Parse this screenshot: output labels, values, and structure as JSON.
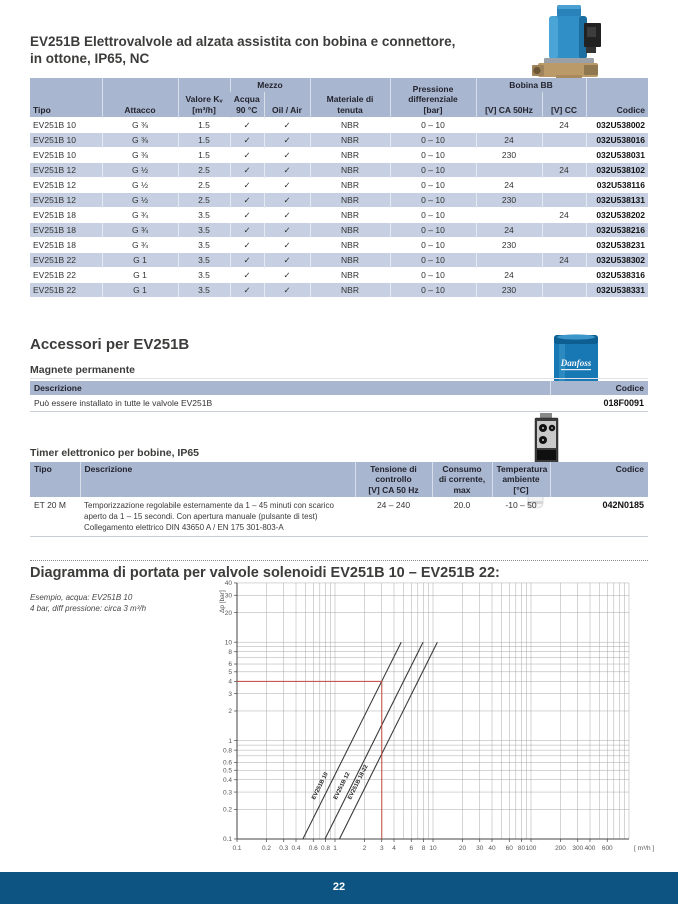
{
  "header": {
    "title": "EV251B Elettrovalvole ad alzata assistita con bobina e connettore,\nin ottone, IP65, NC"
  },
  "main_table": {
    "group_headers": {
      "mezzo": "Mezzo",
      "bobina": "Bobina BB"
    },
    "columns": [
      "Tipo",
      "Attacco",
      "Valore Kᵥ\n[m³/h]",
      "Acqua\n90 °C",
      "Oil / Air",
      "Materiale di\ntenuta",
      "Pressione\ndifferenziale\n[bar]",
      "[V] CA 50Hz",
      "[V] CC",
      "Codice"
    ],
    "rows": [
      [
        "EV251B 10",
        "G ⅜",
        "1.5",
        "✓",
        "✓",
        "NBR",
        "0 – 10",
        "",
        "24",
        "032U538002"
      ],
      [
        "EV251B 10",
        "G ⅜",
        "1.5",
        "✓",
        "✓",
        "NBR",
        "0 – 10",
        "24",
        "",
        "032U538016"
      ],
      [
        "EV251B 10",
        "G ⅜",
        "1.5",
        "✓",
        "✓",
        "NBR",
        "0 – 10",
        "230",
        "",
        "032U538031"
      ],
      [
        "EV251B 12",
        "G ½",
        "2.5",
        "✓",
        "✓",
        "NBR",
        "0 – 10",
        "",
        "24",
        "032U538102"
      ],
      [
        "EV251B 12",
        "G ½",
        "2.5",
        "✓",
        "✓",
        "NBR",
        "0 – 10",
        "24",
        "",
        "032U538116"
      ],
      [
        "EV251B 12",
        "G ½",
        "2.5",
        "✓",
        "✓",
        "NBR",
        "0 – 10",
        "230",
        "",
        "032U538131"
      ],
      [
        "EV251B 18",
        "G ¾",
        "3.5",
        "✓",
        "✓",
        "NBR",
        "0 – 10",
        "",
        "24",
        "032U538202"
      ],
      [
        "EV251B 18",
        "G ¾",
        "3.5",
        "✓",
        "✓",
        "NBR",
        "0 – 10",
        "24",
        "",
        "032U538216"
      ],
      [
        "EV251B 18",
        "G ¾",
        "3.5",
        "✓",
        "✓",
        "NBR",
        "0 – 10",
        "230",
        "",
        "032U538231"
      ],
      [
        "EV251B 22",
        "G 1",
        "3.5",
        "✓",
        "✓",
        "NBR",
        "0 – 10",
        "",
        "24",
        "032U538302"
      ],
      [
        "EV251B 22",
        "G 1",
        "3.5",
        "✓",
        "✓",
        "NBR",
        "0 – 10",
        "24",
        "",
        "032U538316"
      ],
      [
        "EV251B 22",
        "G 1",
        "3.5",
        "✓",
        "✓",
        "NBR",
        "0 – 10",
        "230",
        "",
        "032U538331"
      ]
    ]
  },
  "accessories": {
    "title": "Accessori per EV251B",
    "magnet": {
      "subtitle": "Magnete permanente",
      "columns": [
        "Descrizione",
        "Codice"
      ],
      "row": {
        "descrizione": "Può essere installato in tutte le valvole EV251B",
        "codice": "018F0091"
      }
    },
    "timer": {
      "subtitle": "Timer elettronico per bobine, IP65",
      "columns": [
        "Tipo",
        "Descrizione",
        "Tensione di\ncontrollo\n[V] CA 50 Hz",
        "Consumo\ndi corrente,\nmax",
        "Temperatura\nambiente\n[°C]",
        "Codice"
      ],
      "row": {
        "tipo": "ET 20 M",
        "descrizione": "Temporizzazione regolabile esternamente da 1 – 45 minuti con scarico\naperto da 1 – 15 secondi. Con apertura manuale (pulsante di test)\nCollegamento elettrico DIN 43650 A / EN 175 301-803-A",
        "tensione": "24 – 240",
        "consumo": "20.0",
        "temperatura": "-10 – 50",
        "codice": "042N0185"
      }
    }
  },
  "diagram": {
    "note": "Esempio, acqua: EV251B 10\n4 bar, diff pressione: circa 3 m³/h"
  },
  "chart_data": {
    "type": "line",
    "title": "Diagramma di portata per valvole solenoidi EV251B 10 – EV251B 22:",
    "xlabel": "[ m³/h ]",
    "ylabel": "Δp [bar]",
    "xscale": "log",
    "yscale": "log",
    "xlim": [
      0.1,
      1000
    ],
    "ylim": [
      0.1,
      40
    ],
    "grid": true,
    "x_ticks": [
      0.1,
      0.2,
      0.3,
      0.4,
      0.6,
      0.8,
      1,
      2,
      3,
      4,
      6,
      8,
      10,
      20,
      30,
      40,
      60,
      80,
      100,
      200,
      300,
      400,
      600
    ],
    "y_ticks": [
      0.1,
      0.2,
      0.3,
      0.4,
      0.5,
      0.6,
      0.8,
      1,
      2,
      3,
      4,
      5,
      6,
      8,
      10,
      20,
      30,
      40
    ],
    "series": [
      {
        "name": "EV251B 10",
        "kv": 1.5,
        "points": [
          [
            0.47,
            0.1
          ],
          [
            4.74,
            10
          ]
        ]
      },
      {
        "name": "EV251B 12",
        "kv": 2.5,
        "points": [
          [
            0.79,
            0.1
          ],
          [
            7.91,
            10
          ]
        ]
      },
      {
        "name": "EV251B 18-22",
        "kv": 3.5,
        "points": [
          [
            1.11,
            0.1
          ],
          [
            11.07,
            10
          ]
        ]
      }
    ],
    "example": {
      "dp": 4,
      "flow": 3,
      "color": "#c0453c"
    }
  },
  "images": {
    "valve": "valvola EV251B con bobina blu",
    "magnet_logo": "Danfoss",
    "timer": "timer elettronico ET 20 M"
  },
  "footer": {
    "page_number": "22"
  },
  "colors": {
    "table_header_bg": "#a8b6d0",
    "row_alt_bg": "#c6d0e2",
    "footer_bg": "#0d5483",
    "example_red": "#c0453c",
    "heading_text": "#3c3c3b"
  }
}
